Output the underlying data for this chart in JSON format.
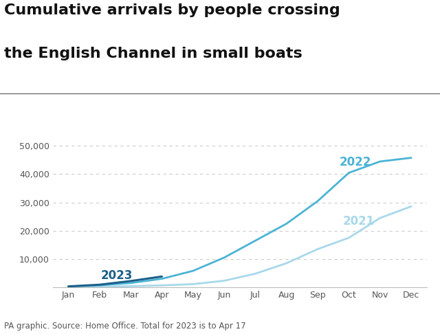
{
  "title_line1": "Cumulative arrivals by people crossing",
  "title_line2": "the English Channel in small boats",
  "source": "PA graphic. Source: Home Office. Total for 2023 is to Apr 17",
  "months": [
    "Jan",
    "Feb",
    "Mar",
    "Apr",
    "May",
    "Jun",
    "Jul",
    "Aug",
    "Sep",
    "Oct",
    "Nov",
    "Dec"
  ],
  "data_2022": [
    300,
    700,
    1500,
    3000,
    5800,
    10500,
    16500,
    22500,
    30500,
    40500,
    44500,
    45800
  ],
  "data_2021": [
    80,
    180,
    380,
    650,
    1100,
    2300,
    4800,
    8500,
    13500,
    17500,
    24500,
    28600
  ],
  "data_2023": [
    300,
    900,
    2200,
    3800,
    null,
    null,
    null,
    null,
    null,
    null,
    null,
    null
  ],
  "color_2022": "#4ab3d4",
  "color_2021": "#a8d8ea",
  "color_2023": "#1c5f8a",
  "label_2022": "2022",
  "label_2021": "2021",
  "label_2023": "2023",
  "label_color_2022": "#4ab3d4",
  "label_color_2021": "#a8d8ea",
  "label_color_2023": "#1c5f8a",
  "label_fontsize": 12,
  "title_fontsize": 16,
  "source_fontsize": 8.5,
  "tick_fontsize": 9,
  "ylim": [
    0,
    52000
  ],
  "yticks": [
    10000,
    20000,
    30000,
    40000,
    50000
  ],
  "background_color": "#ffffff",
  "grid_color": "#cccccc",
  "title_color": "#111111",
  "source_color": "#555555",
  "separator_color": "#555555",
  "bottom_spine_color": "#bbbbbb"
}
